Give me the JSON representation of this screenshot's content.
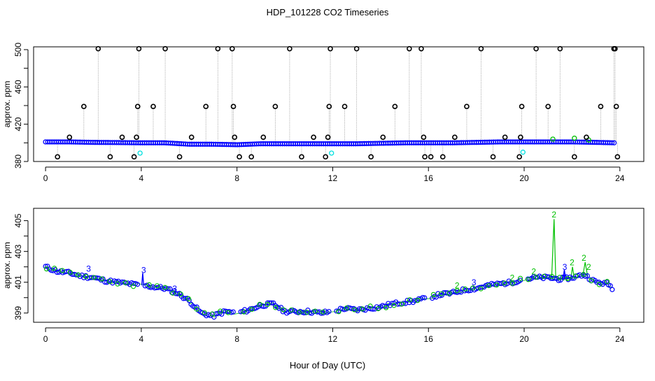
{
  "title": "HDP_101228  CO2 Timeseries",
  "xlabel": "Hour of Day (UTC)",
  "colors": {
    "axis": "#000000",
    "spike_points": "#000000",
    "baseline_points": "#0000ff",
    "secondary_points": "#00c000",
    "cyan_points": "#00e0e0",
    "connector_lines": "#b0b0b0"
  },
  "chart_data": [
    {
      "type": "scatter",
      "ylabel": "approx. ppm",
      "xlim": [
        -0.5,
        25
      ],
      "ylim": [
        380,
        503
      ],
      "xticks": [
        0,
        4,
        8,
        12,
        16,
        20,
        24
      ],
      "yticks": [
        380,
        420,
        460,
        500
      ],
      "yticks_minor": [
        400,
        440,
        480
      ],
      "grid": false,
      "series": [],
      "baseline": {
        "x": [
          0,
          1,
          2,
          3,
          4,
          5,
          6,
          7,
          8,
          9,
          10,
          11,
          12,
          13,
          14,
          15,
          16,
          17,
          18,
          19,
          20,
          21,
          22,
          23,
          23.8
        ],
        "y": [
          401,
          401,
          400.5,
          400.3,
          400,
          400,
          398.5,
          398.5,
          398,
          399,
          399,
          399,
          399,
          399,
          399.5,
          400,
          400,
          400,
          400.5,
          401,
          401,
          401,
          401,
          400.5,
          400
        ]
      },
      "spikes": {
        "x": [
          0.5,
          1.0,
          1.6,
          2.2,
          2.7,
          3.2,
          3.7,
          3.8,
          3.85,
          3.9,
          4.5,
          5.0,
          5.6,
          6.1,
          6.7,
          7.2,
          7.8,
          7.85,
          7.9,
          8.1,
          8.6,
          9.1,
          9.6,
          10.2,
          10.7,
          11.2,
          11.7,
          11.8,
          11.85,
          11.9,
          12.5,
          13.0,
          13.6,
          14.1,
          14.6,
          15.2,
          15.7,
          15.8,
          15.85,
          16.1,
          16.6,
          17.1,
          17.6,
          18.2,
          18.7,
          19.2,
          19.8,
          19.85,
          19.9,
          20.5,
          21.0,
          21.5,
          22.1,
          22.6,
          23.2,
          23.75,
          23.8,
          23.85,
          23.9
        ],
        "y": [
          385,
          406,
          439,
          501,
          385,
          406,
          385,
          406,
          439,
          501,
          439,
          501,
          385,
          406,
          439,
          501,
          501,
          439,
          406,
          385,
          385,
          406,
          439,
          501,
          385,
          406,
          385,
          406,
          439,
          501,
          439,
          501,
          385,
          406,
          439,
          501,
          501,
          406,
          385,
          385,
          385,
          406,
          439,
          501,
          385,
          406,
          385,
          406,
          439,
          501,
          439,
          501,
          385,
          406,
          439,
          501,
          501,
          439,
          385
        ]
      },
      "cyan_points": {
        "x": [
          3.95,
          11.95,
          19.95
        ],
        "y": [
          389,
          389,
          390
        ]
      }
    },
    {
      "type": "line",
      "ylabel": "approx. ppm",
      "xlim": [
        -0.5,
        25
      ],
      "ylim": [
        398.4,
        405.8
      ],
      "xticks": [
        0,
        4,
        8,
        12,
        16,
        20,
        24
      ],
      "yticks": [
        399,
        401,
        403,
        405
      ],
      "yticks_minor": [
        400,
        402,
        404
      ],
      "grid": false,
      "series": [
        {
          "x": [
            0,
            0.5,
            1,
            1.5,
            2,
            2.5,
            3,
            3.5,
            4,
            4.5,
            5,
            5.5,
            6,
            6.5,
            7,
            7.5,
            8,
            8.5,
            9,
            9.5,
            10,
            10.5,
            11,
            11.5,
            12,
            12.5,
            13,
            13.5,
            14,
            14.5,
            15,
            15.5,
            16,
            16.5,
            17,
            17.5,
            18,
            18.5,
            19,
            19.5,
            20,
            20.5,
            21,
            21.5,
            22,
            22.5,
            23,
            23.5,
            23.7
          ],
          "y": [
            402,
            401.7,
            401.6,
            401.4,
            401.3,
            401.1,
            401,
            400.9,
            400.8,
            400.7,
            400.6,
            400.3,
            399.8,
            399,
            398.8,
            399.1,
            399,
            399.2,
            399.5,
            399.6,
            399.1,
            399.1,
            399.1,
            399,
            399.1,
            399.3,
            399.2,
            399.3,
            399.4,
            399.6,
            399.7,
            399.8,
            400,
            400.2,
            400.3,
            400.5,
            400.6,
            400.8,
            400.9,
            401,
            401.2,
            401.3,
            401.3,
            401.2,
            401.3,
            401.5,
            401,
            400.9,
            400.6
          ]
        }
      ],
      "annotations": [
        {
          "label": "3",
          "x": 1.8,
          "y": 401.7
        },
        {
          "label": "3",
          "x": 4.1,
          "y": 401.6
        },
        {
          "label": "3",
          "x": 5.4,
          "y": 400.4
        },
        {
          "label": "2",
          "x": 17.2,
          "y": 400.6
        },
        {
          "label": "3",
          "x": 17.9,
          "y": 400.8
        },
        {
          "label": "2",
          "x": 19.5,
          "y": 401.1
        },
        {
          "label": "2",
          "x": 20.4,
          "y": 401.5
        },
        {
          "label": "2",
          "x": 21.25,
          "y": 405.2
        },
        {
          "label": "3",
          "x": 21.7,
          "y": 401.8
        },
        {
          "label": "2",
          "x": 22.0,
          "y": 402.1
        },
        {
          "label": "2",
          "x": 22.5,
          "y": 402.4
        },
        {
          "label": "2",
          "x": 22.7,
          "y": 401.8
        }
      ]
    }
  ]
}
